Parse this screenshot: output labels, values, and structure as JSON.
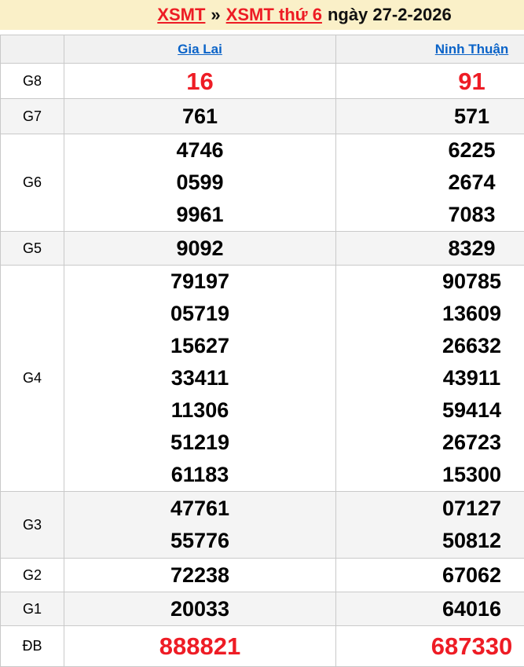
{
  "header": {
    "title_link_1": "XSMT",
    "title_separator": "»",
    "title_link_2": "XSMT thứ 6",
    "title_date": "ngày 27-2-2026"
  },
  "table": {
    "columns": [
      "Gia Lai",
      "Ninh Thuận"
    ],
    "prizes": [
      {
        "label": "G8",
        "gia_lai": [
          "16"
        ],
        "ninh_thuan": [
          "91"
        ]
      },
      {
        "label": "G7",
        "gia_lai": [
          "761"
        ],
        "ninh_thuan": [
          "571"
        ]
      },
      {
        "label": "G6",
        "gia_lai": [
          "4746",
          "0599",
          "9961"
        ],
        "ninh_thuan": [
          "6225",
          "2674",
          "7083"
        ]
      },
      {
        "label": "G5",
        "gia_lai": [
          "9092"
        ],
        "ninh_thuan": [
          "8329"
        ]
      },
      {
        "label": "G4",
        "gia_lai": [
          "79197",
          "05719",
          "15627",
          "33411",
          "11306",
          "51219",
          "61183"
        ],
        "ninh_thuan": [
          "90785",
          "13609",
          "26632",
          "43911",
          "59414",
          "26723",
          "15300"
        ]
      },
      {
        "label": "G3",
        "gia_lai": [
          "47761",
          "55776"
        ],
        "ninh_thuan": [
          "07127",
          "50812"
        ]
      },
      {
        "label": "G2",
        "gia_lai": [
          "72238"
        ],
        "ninh_thuan": [
          "67062"
        ]
      },
      {
        "label": "G1",
        "gia_lai": [
          "20033"
        ],
        "ninh_thuan": [
          "64016"
        ]
      },
      {
        "label": "ĐB",
        "gia_lai": [
          "888821"
        ],
        "ninh_thuan": [
          "687330"
        ]
      }
    ]
  },
  "colors": {
    "title_bar_bg": "#FAF0C8",
    "red_highlight": "#EE1C25",
    "red_link": "#ED1C24",
    "link_blue": "#0A63C8",
    "row_alt_bg": "#F4F4F4",
    "border": "#C9C9C9"
  }
}
